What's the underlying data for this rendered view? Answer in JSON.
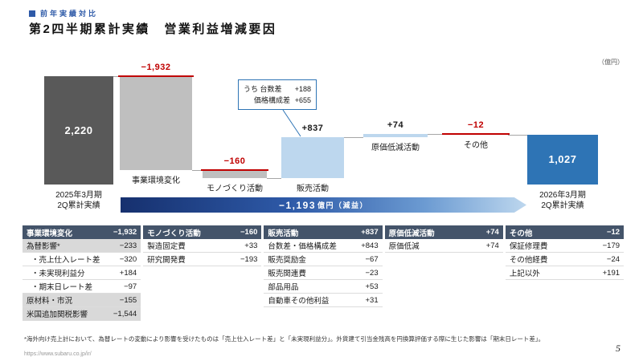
{
  "header": {
    "eyebrow": "前年実績対比",
    "title": "第2四半期累計実績　営業利益増減要因",
    "unit_note": "（億円）"
  },
  "chart_data": {
    "type": "waterfall",
    "title": "第2四半期累計実績 営業利益増減要因",
    "unit": "億円",
    "ylim": [
      0,
      2220
    ],
    "start": {
      "label_line1": "2025年3月期",
      "label_line2": "2Q累計実績",
      "value": 2220,
      "display": "2,220"
    },
    "end": {
      "label_line1": "2026年3月期",
      "label_line2": "2Q累計実績",
      "value": 1027,
      "display": "1,027"
    },
    "steps": [
      {
        "label": "事業環境変化",
        "value": -1932,
        "display": "−1,932"
      },
      {
        "label": "モノづくり活動",
        "value": -160,
        "display": "−160"
      },
      {
        "label": "販売活動",
        "value": 837,
        "display": "+837"
      },
      {
        "label": "原価低減活動",
        "value": 74,
        "display": "+74"
      },
      {
        "label": "その他",
        "value": -12,
        "display": "−12"
      }
    ],
    "callout": {
      "rows": [
        {
          "label": "うち 台数差",
          "value": "+188"
        },
        {
          "label": "価格構成差",
          "value": "+655"
        }
      ]
    },
    "total_change": {
      "amount": "−1,193",
      "suffix": "億円（減益）"
    }
  },
  "table": {
    "columns": [
      {
        "header": "事業環境変化",
        "total": "−1,932",
        "rows": [
          {
            "label": "為替影響*",
            "value": "−233",
            "shade": true
          },
          {
            "label": "・売上仕入レート差",
            "value": "−320",
            "shade": false
          },
          {
            "label": "・未実現利益分",
            "value": "+184",
            "shade": false
          },
          {
            "label": "・期末日レート差",
            "value": "−97",
            "shade": false
          },
          {
            "label": "原材料・市況",
            "value": "−155",
            "shade": true
          },
          {
            "label": "米国追加関税影響",
            "value": "−1,544",
            "shade": true
          }
        ]
      },
      {
        "header": "モノづくり活動",
        "total": "−160",
        "rows": [
          {
            "label": "製造固定費",
            "value": "+33",
            "shade": false
          },
          {
            "label": "研究開発費",
            "value": "−193",
            "shade": false
          }
        ]
      },
      {
        "header": "販売活動",
        "total": "+837",
        "rows": [
          {
            "label": "台数差・価格構成差",
            "value": "+843",
            "shade": false
          },
          {
            "label": "販売奨励金",
            "value": "−67",
            "shade": false
          },
          {
            "label": "販売関連費",
            "value": "−23",
            "shade": false
          },
          {
            "label": "部品用品",
            "value": "+53",
            "shade": false
          },
          {
            "label": "自動車その他利益",
            "value": "+31",
            "shade": false
          }
        ]
      },
      {
        "header": "原価低減活動",
        "total": "+74",
        "rows": [
          {
            "label": "原価低減",
            "value": "+74",
            "shade": false
          }
        ]
      },
      {
        "header": "その他",
        "total": "−12",
        "rows": [
          {
            "label": "保証修理費",
            "value": "−179",
            "shade": false
          },
          {
            "label": "その他経費",
            "value": "−24",
            "shade": false
          },
          {
            "label": "上記以外",
            "value": "+191",
            "shade": false
          }
        ]
      }
    ]
  },
  "footnote": {
    "text": "*海外向け売上計において、為替レートの変動により影響を受けたものは「売上仕入レート差」と「未実現利益分」。外貨建て引当金残高を円換算評価する際に生じた影響は「期末日レート差」。"
  },
  "footer": {
    "url": "https://www.subaru.co.jp/ir/",
    "page": "5"
  }
}
